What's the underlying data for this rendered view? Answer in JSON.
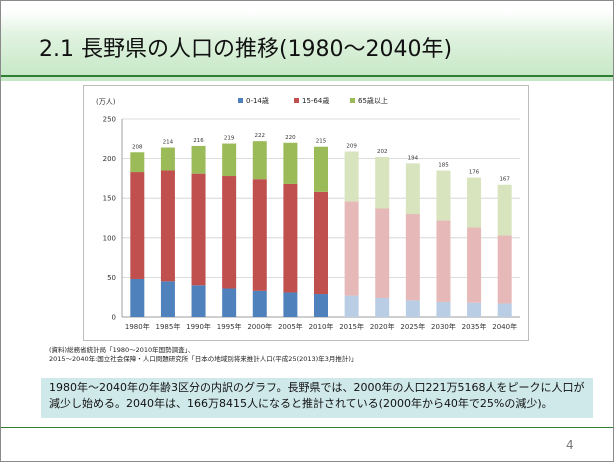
{
  "slide": {
    "title": "2.1 長野県の人口の推移(1980〜2040年)",
    "source_line1": "(資料)総務省統計局「1980〜2010年国勢調査」、",
    "source_line2": "2015〜2040年:国立社会保障・人口問題研究所「日本の地域別将来推計人口(平成25(2013)年3月推計)」",
    "note": "1980年〜2040年の年齢3区分の内訳のグラフ。長野県では、2000年の人口221万5168人をピークに人口が減少し始める。2040年は、166万8415人になると推計されている(2000年から40年で25%の減少)。",
    "page_number": "4"
  },
  "chart_data": {
    "type": "bar",
    "stacked": true,
    "ylabel": "(万人)",
    "ylim": [
      0,
      250
    ],
    "yticks": [
      "0",
      "50",
      "100",
      "150",
      "200",
      "250"
    ],
    "grid": true,
    "legend_position": "top",
    "categories": [
      "1980年",
      "1985年",
      "1990年",
      "1995年",
      "2000年",
      "2005年",
      "2010年",
      "2015年",
      "2020年",
      "2025年",
      "2030年",
      "2035年",
      "2040年"
    ],
    "projection_start_index": 7,
    "series": [
      {
        "name": "0-14歳",
        "color": "#4f81bd",
        "projected_color": "#b9cde5",
        "values": [
          48,
          45,
          40,
          36,
          33,
          31,
          29,
          27,
          24,
          21,
          19,
          18,
          17
        ]
      },
      {
        "name": "15-64歳",
        "color": "#c0504d",
        "projected_color": "#e6b9b8",
        "values": [
          135,
          140,
          141,
          142,
          141,
          137,
          129,
          119,
          113,
          109,
          103,
          95,
          86
        ]
      },
      {
        "name": "65歳以上",
        "color": "#9bbb59",
        "projected_color": "#d7e4bd",
        "values": [
          25,
          29,
          35,
          41,
          48,
          52,
          57,
          63,
          65,
          64,
          63,
          63,
          64
        ]
      }
    ],
    "totals": [
      "208",
      "214",
      "216",
      "219",
      "222",
      "220",
      "215",
      "209",
      "202",
      "194",
      "185",
      "176",
      "167"
    ]
  }
}
